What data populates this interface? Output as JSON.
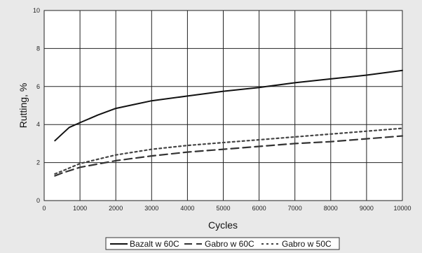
{
  "chart_data": {
    "type": "line",
    "title": "",
    "xlabel": "Cycles",
    "ylabel": "Rutting, %",
    "xlim": [
      0,
      10000
    ],
    "ylim": [
      0,
      10
    ],
    "x_ticks": [
      0,
      1000,
      2000,
      3000,
      4000,
      5000,
      6000,
      7000,
      8000,
      9000,
      10000
    ],
    "y_ticks": [
      0,
      2,
      4,
      6,
      8,
      10
    ],
    "grid": true,
    "legend_position": "bottom",
    "series": [
      {
        "name": "Bazalt w 60C",
        "style": "solid",
        "color": "#111111",
        "x": [
          300,
          500,
          700,
          1000,
          1500,
          2000,
          2500,
          3000,
          4000,
          5000,
          6000,
          7000,
          8000,
          9000,
          10000
        ],
        "y": [
          3.15,
          3.5,
          3.85,
          4.1,
          4.5,
          4.85,
          5.05,
          5.25,
          5.5,
          5.75,
          5.95,
          6.2,
          6.4,
          6.6,
          6.85
        ]
      },
      {
        "name": "Gabro w 60C",
        "style": "dashed",
        "color": "#333333",
        "x": [
          300,
          500,
          1000,
          2000,
          3000,
          4000,
          5000,
          6000,
          7000,
          8000,
          9000,
          10000
        ],
        "y": [
          1.3,
          1.45,
          1.75,
          2.1,
          2.35,
          2.55,
          2.7,
          2.85,
          3.0,
          3.1,
          3.25,
          3.4
        ]
      },
      {
        "name": "Gabro w 50C",
        "style": "dotted",
        "color": "#444444",
        "x": [
          300,
          500,
          1000,
          2000,
          3000,
          4000,
          5000,
          6000,
          7000,
          8000,
          9000,
          10000
        ],
        "y": [
          1.4,
          1.55,
          1.95,
          2.4,
          2.7,
          2.9,
          3.05,
          3.2,
          3.35,
          3.5,
          3.65,
          3.8
        ]
      }
    ]
  }
}
